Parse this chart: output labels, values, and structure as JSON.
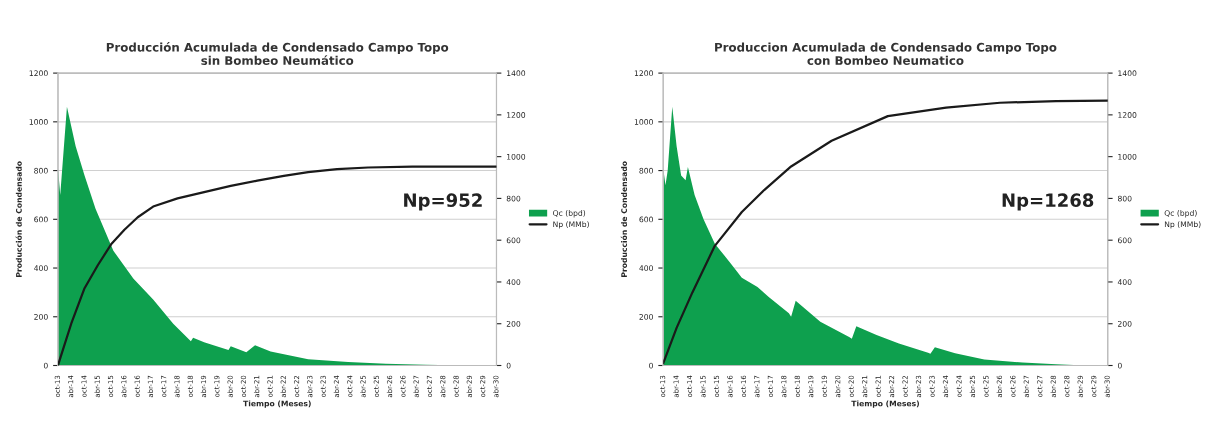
{
  "chart_data": [
    {
      "type": "area",
      "title": "Producción Acumulada de Condensado Campo Topo\nsin Bombeo Neumático",
      "xlabel": "Tiempo (Meses)",
      "ylabel": "Producción de Condensado",
      "annotations": [
        "Np=952"
      ],
      "xlim": [
        "2013-10",
        "2030-04"
      ],
      "ylim": [
        0,
        1200
      ],
      "yticks": [
        0,
        200,
        400,
        600,
        800,
        1000,
        1200
      ],
      "y2lim": [
        0,
        1400
      ],
      "y2ticks": [
        0,
        200,
        400,
        600,
        800,
        1000,
        1200,
        1400
      ],
      "grid": "y",
      "legend": "right",
      "xticks": [
        {
          "value": "2013-10",
          "label": "oct-13"
        },
        {
          "value": "2014-04",
          "label": "abr-14"
        },
        {
          "value": "2014-10",
          "label": "oct-14"
        },
        {
          "value": "2015-04",
          "label": "abr-15"
        },
        {
          "value": "2015-10",
          "label": "oct-15"
        },
        {
          "value": "2016-04",
          "label": "abr-16"
        },
        {
          "value": "2016-10",
          "label": "oct-16"
        },
        {
          "value": "2017-04",
          "label": "abr-17"
        },
        {
          "value": "2017-10",
          "label": "oct-17"
        },
        {
          "value": "2018-04",
          "label": "abr-18"
        },
        {
          "value": "2018-10",
          "label": "oct-18"
        },
        {
          "value": "2019-04",
          "label": "abr-19"
        },
        {
          "value": "2019-10",
          "label": "oct-19"
        },
        {
          "value": "2020-04",
          "label": "abr-20"
        },
        {
          "value": "2020-10",
          "label": "oct-20"
        },
        {
          "value": "2021-04",
          "label": "abr-21"
        },
        {
          "value": "2021-10",
          "label": "oct-21"
        },
        {
          "value": "2022-04",
          "label": "abr-22"
        },
        {
          "value": "2022-10",
          "label": "oct-22"
        },
        {
          "value": "2023-04",
          "label": "abr-23"
        },
        {
          "value": "2023-10",
          "label": "oct-23"
        },
        {
          "value": "2024-04",
          "label": "abr-24"
        },
        {
          "value": "2024-10",
          "label": "oct-24"
        },
        {
          "value": "2025-04",
          "label": "abr-25"
        },
        {
          "value": "2025-10",
          "label": "oct-25"
        },
        {
          "value": "2026-04",
          "label": "abr-26"
        },
        {
          "value": "2026-10",
          "label": "oct-26"
        },
        {
          "value": "2027-04",
          "label": "abr-27"
        },
        {
          "value": "2027-10",
          "label": "oct-27"
        },
        {
          "value": "2028-04",
          "label": "abr-28"
        },
        {
          "value": "2028-10",
          "label": "oct-28"
        },
        {
          "value": "2029-04",
          "label": "abr-29"
        },
        {
          "value": "2029-10",
          "label": "oct-29"
        },
        {
          "value": "2030-04",
          "label": "abr-30"
        }
      ],
      "series": [
        {
          "name": "Qc (bpd)",
          "color": "#0ea04e",
          "x": [
            "2013-10",
            "2013-11",
            "2014-02",
            "2014-06",
            "2014-10",
            "2015-03",
            "2015-11",
            "2016-08",
            "2017-05",
            "2018-02",
            "2018-10",
            "2018-11",
            "2019-04",
            "2019-10",
            "2020-03",
            "2020-04",
            "2020-11",
            "2021-03",
            "2021-10",
            "2023-03",
            "2024-09",
            "2026-02",
            "2027-08",
            "2029-02",
            "2030-04"
          ],
          "values": [
            810,
            700,
            1062,
            900,
            780,
            643,
            471,
            357,
            271,
            171,
            100,
            114,
            95,
            78,
            64,
            79,
            54,
            83,
            57,
            26,
            14,
            7,
            3,
            0,
            0
          ]
        },
        {
          "name": "Np (MMb)",
          "type": "line",
          "axis": "y2",
          "color": "#1a1a1a",
          "x": [
            "2013-10",
            "2013-11",
            "2014-04",
            "2014-10",
            "2015-04",
            "2015-10",
            "2016-04",
            "2016-10",
            "2017-05",
            "2018-04",
            "2019-04",
            "2020-04",
            "2021-04",
            "2022-04",
            "2023-03",
            "2024-04",
            "2025-06",
            "2027-02",
            "2030-04"
          ],
          "values": [
            0,
            35,
            200,
            370,
            480,
            580,
            650,
            710,
            761,
            800,
            830,
            860,
            885,
            908,
            926,
            940,
            948,
            952,
            952
          ]
        }
      ]
    },
    {
      "type": "area",
      "title": "Produccion Acumulada de Condensado Campo Topo\ncon Bombeo Neumatico",
      "xlabel": "Tiempo (Meses)",
      "ylabel": "Producción de Condensado",
      "annotations": [
        "Np=1268"
      ],
      "xlim": [
        "2013-10",
        "2030-04"
      ],
      "ylim": [
        0,
        1200
      ],
      "yticks": [
        0,
        200,
        400,
        600,
        800,
        1000,
        1200
      ],
      "y2lim": [
        0,
        1400
      ],
      "y2ticks": [
        0,
        200,
        400,
        600,
        800,
        1000,
        1200,
        1400
      ],
      "grid": "y",
      "legend": "right",
      "xticks": [
        {
          "value": "2013-10",
          "label": "oct-13"
        },
        {
          "value": "2014-04",
          "label": "abr-14"
        },
        {
          "value": "2014-10",
          "label": "oct-14"
        },
        {
          "value": "2015-04",
          "label": "abr-15"
        },
        {
          "value": "2015-10",
          "label": "oct-15"
        },
        {
          "value": "2016-04",
          "label": "abr-16"
        },
        {
          "value": "2016-10",
          "label": "oct-16"
        },
        {
          "value": "2017-04",
          "label": "abr-17"
        },
        {
          "value": "2017-10",
          "label": "oct-17"
        },
        {
          "value": "2018-04",
          "label": "abr-18"
        },
        {
          "value": "2018-10",
          "label": "oct-18"
        },
        {
          "value": "2019-04",
          "label": "abr-19"
        },
        {
          "value": "2019-10",
          "label": "oct-19"
        },
        {
          "value": "2020-04",
          "label": "abr-20"
        },
        {
          "value": "2020-10",
          "label": "oct-20"
        },
        {
          "value": "2021-04",
          "label": "abr-21"
        },
        {
          "value": "2021-10",
          "label": "oct-21"
        },
        {
          "value": "2022-04",
          "label": "abr-22"
        },
        {
          "value": "2022-10",
          "label": "oct-22"
        },
        {
          "value": "2023-04",
          "label": "abr-23"
        },
        {
          "value": "2023-10",
          "label": "oct-23"
        },
        {
          "value": "2024-04",
          "label": "abr-24"
        },
        {
          "value": "2024-10",
          "label": "oct-24"
        },
        {
          "value": "2025-04",
          "label": "abr-25"
        },
        {
          "value": "2025-10",
          "label": "oct-25"
        },
        {
          "value": "2026-04",
          "label": "abr-26"
        },
        {
          "value": "2026-10",
          "label": "oct-26"
        },
        {
          "value": "2027-04",
          "label": "abr-27"
        },
        {
          "value": "2027-10",
          "label": "oct-27"
        },
        {
          "value": "2028-04",
          "label": "abr-28"
        },
        {
          "value": "2028-10",
          "label": "oct-28"
        },
        {
          "value": "2029-04",
          "label": "abr-29"
        },
        {
          "value": "2029-10",
          "label": "oct-29"
        },
        {
          "value": "2030-04",
          "label": "abr-30"
        }
      ],
      "series": [
        {
          "name": "Qc (bpd)",
          "color": "#0ea04e",
          "x": [
            "2013-10",
            "2013-11",
            "2013-12",
            "2014-02",
            "2014-04",
            "2014-06",
            "2014-08",
            "2014-09",
            "2014-12",
            "2015-04",
            "2015-09",
            "2016-04",
            "2016-09",
            "2017-04",
            "2017-09",
            "2018-06",
            "2018-07",
            "2018-09",
            "2019-08",
            "2020-09",
            "2020-10",
            "2020-12",
            "2021-09",
            "2022-07",
            "2023-08",
            "2023-09",
            "2023-11",
            "2024-08",
            "2025-09",
            "2027-02",
            "2028-05",
            "2029-06",
            "2030-04"
          ],
          "values": [
            810,
            740,
            800,
            1062,
            900,
            780,
            760,
            815,
            700,
            600,
            500,
            420,
            360,
            322,
            281,
            214,
            200,
            266,
            180,
            116,
            110,
            161,
            125,
            90,
            52,
            48,
            75,
            50,
            25,
            12,
            5,
            0,
            0
          ]
        },
        {
          "name": "Np (MMb)",
          "type": "line",
          "axis": "y2",
          "color": "#1a1a1a",
          "x": [
            "2013-10",
            "2014-04",
            "2014-11",
            "2015-09",
            "2016-09",
            "2017-07",
            "2018-07",
            "2020-01",
            "2022-02",
            "2024-04",
            "2026-04",
            "2028-05",
            "2030-04"
          ],
          "values": [
            10,
            180,
            350,
            573,
            735,
            840,
            953,
            1076,
            1194,
            1235,
            1258,
            1266,
            1268
          ]
        }
      ]
    }
  ]
}
